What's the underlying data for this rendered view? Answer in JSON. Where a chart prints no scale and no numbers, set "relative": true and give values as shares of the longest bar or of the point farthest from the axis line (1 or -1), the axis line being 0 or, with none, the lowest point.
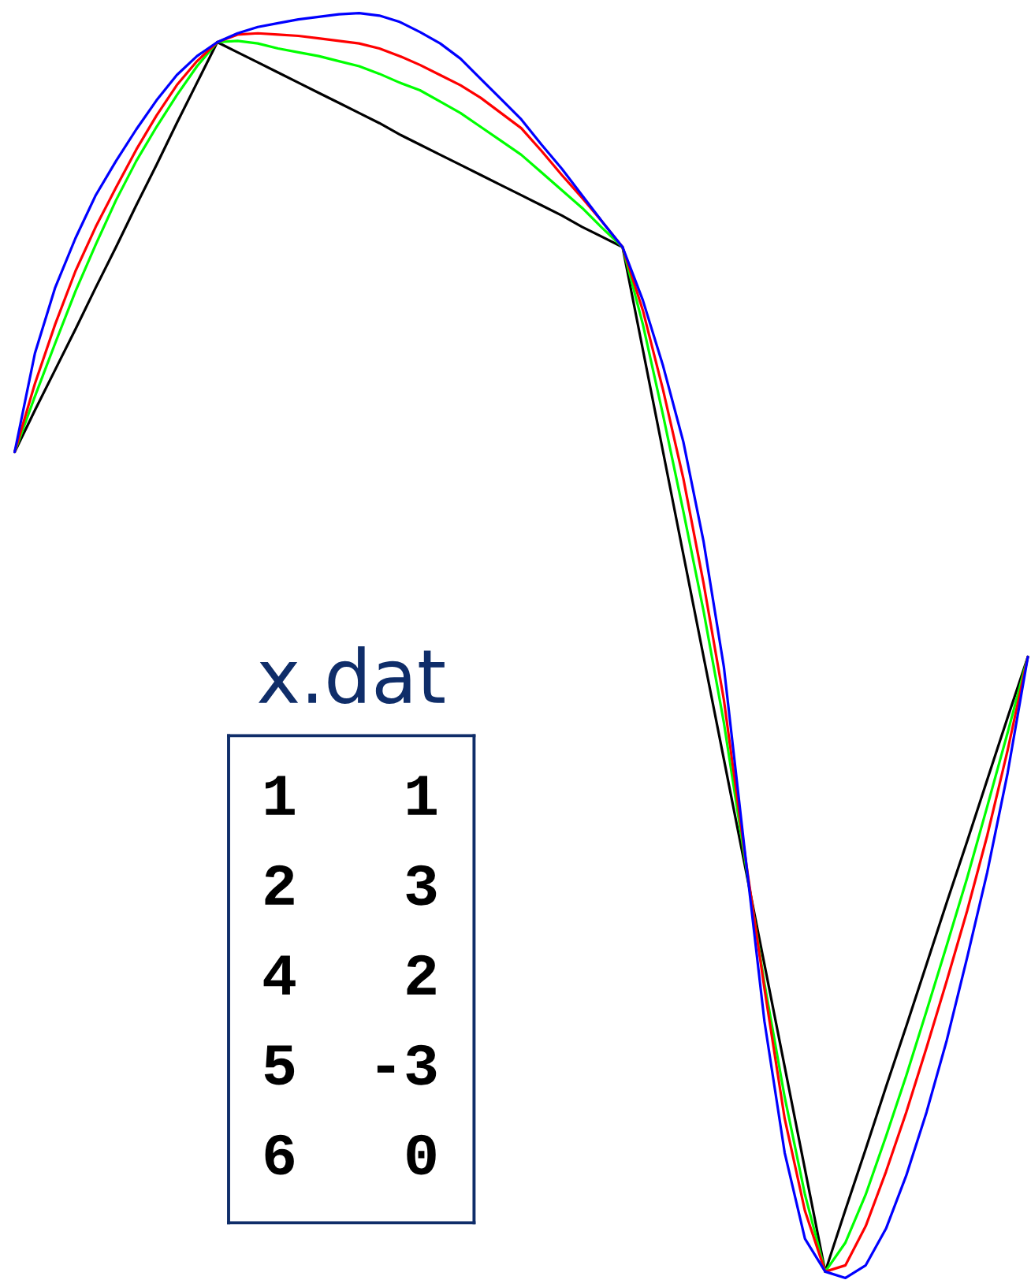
{
  "chart_data": [
    {
      "type": "line",
      "relative": true,
      "line_style": "solid",
      "categories": [
        null,
        null,
        null,
        null,
        null,
        null,
        null,
        null,
        null,
        null,
        null,
        null,
        null,
        null,
        null,
        null,
        null,
        null,
        null,
        null,
        null,
        null,
        null,
        null,
        null,
        null,
        null,
        null,
        null,
        null,
        null,
        null,
        null,
        null,
        null,
        null,
        null,
        null,
        null,
        null,
        null,
        null,
        null,
        null,
        null,
        null,
        null,
        null,
        null,
        null,
        null
      ],
      "series": [
        {
          "color": "#000000",
          "values": [
            0.653,
            0.686,
            0.718,
            0.75,
            0.783,
            0.815,
            0.848,
            0.88,
            0.913,
            0.945,
            0.977,
            0.969,
            0.961,
            0.953,
            0.945,
            0.937,
            0.929,
            0.921,
            0.913,
            0.904,
            0.896,
            0.888,
            0.88,
            0.872,
            0.864,
            0.856,
            0.848,
            0.84,
            0.831,
            0.823,
            0.815,
            0.734,
            0.653,
            0.572,
            0.491,
            0.41,
            0.329,
            0.248,
            0.167,
            0.086,
            0.005,
            0.054,
            0.102,
            0.151,
            0.199,
            0.248,
            0.297,
            0.345,
            0.394,
            0.443,
            0.491
          ]
        },
        {
          "color": "#00ff00",
          "values": [
            0.653,
            0.697,
            0.739,
            0.78,
            0.817,
            0.852,
            0.883,
            0.91,
            0.935,
            0.958,
            0.977,
            0.978,
            0.976,
            0.972,
            0.969,
            0.966,
            0.962,
            0.958,
            0.952,
            0.945,
            0.939,
            0.93,
            0.921,
            0.91,
            0.899,
            0.888,
            0.874,
            0.86,
            0.846,
            0.83,
            0.815,
            0.754,
            0.682,
            0.606,
            0.527,
            0.439,
            0.335,
            0.233,
            0.143,
            0.066,
            0.005,
            0.028,
            0.066,
            0.112,
            0.16,
            0.211,
            0.263,
            0.316,
            0.373,
            0.431,
            0.491
          ]
        },
        {
          "color": "#ff0000",
          "values": [
            0.653,
            0.707,
            0.754,
            0.796,
            0.831,
            0.862,
            0.892,
            0.919,
            0.943,
            0.962,
            0.977,
            0.983,
            0.984,
            0.983,
            0.982,
            0.98,
            0.978,
            0.976,
            0.972,
            0.966,
            0.959,
            0.951,
            0.943,
            0.933,
            0.921,
            0.909,
            0.891,
            0.872,
            0.854,
            0.835,
            0.815,
            0.765,
            0.702,
            0.632,
            0.549,
            0.457,
            0.339,
            0.229,
            0.126,
            0.053,
            0.005,
            0.01,
            0.041,
            0.084,
            0.131,
            0.182,
            0.235,
            0.29,
            0.35,
            0.417,
            0.491
          ]
        },
        {
          "color": "#0000ff",
          "values": [
            0.653,
            0.731,
            0.783,
            0.822,
            0.856,
            0.883,
            0.908,
            0.931,
            0.951,
            0.966,
            0.977,
            0.984,
            0.989,
            0.992,
            0.995,
            0.997,
            0.999,
            1.0,
            0.998,
            0.993,
            0.985,
            0.976,
            0.964,
            0.948,
            0.932,
            0.916,
            0.896,
            0.877,
            0.856,
            0.835,
            0.815,
            0.773,
            0.721,
            0.661,
            0.582,
            0.483,
            0.342,
            0.203,
            0.099,
            0.031,
            0.005,
            0.0,
            0.01,
            0.039,
            0.081,
            0.131,
            0.188,
            0.253,
            0.321,
            0.399,
            0.491
          ]
        }
      ]
    },
    {
      "type": "other",
      "title": "x.dat",
      "annotations": [
        "1   1",
        "2   3",
        "4   2",
        "5  -3",
        "6   0"
      ]
    }
  ]
}
